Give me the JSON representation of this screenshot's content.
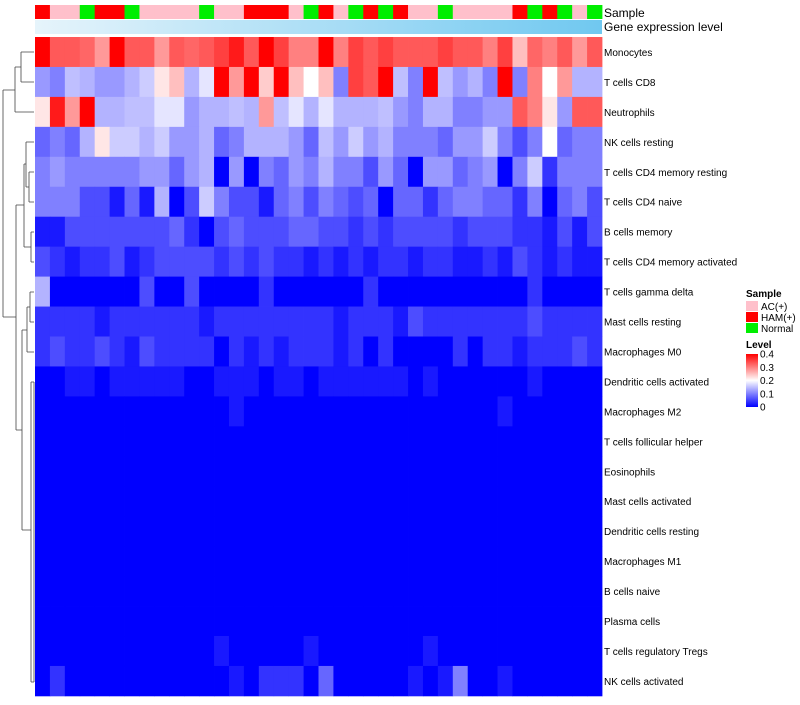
{
  "chart_data": {
    "type": "heatmap",
    "annotation_labels": [
      "Sample",
      "Gene expression level"
    ],
    "rows": [
      "Monocytes",
      "T cells CD8",
      "Neutrophils",
      "NK cells resting",
      "T cells CD4 memory resting",
      "T cells CD4 naive",
      "B cells memory",
      "T cells CD4 memory activated",
      "T cells gamma delta",
      "Mast cells resting",
      "Macrophages M0",
      "Dendritic cells activated",
      "Macrophages M2",
      "T cells follicular helper",
      "Eosinophils",
      "Mast cells activated",
      "Dendritic cells resting",
      "Macrophages M1",
      "B cells naive",
      "Plasma cells",
      "T cells regulatory  Tregs",
      "NK cells activated"
    ],
    "samples": [
      "HAM(+)",
      "AC(+)",
      "AC(+)",
      "Normal",
      "HAM(+)",
      "HAM(+)",
      "Normal",
      "AC(+)",
      "AC(+)",
      "AC(+)",
      "AC(+)",
      "Normal",
      "AC(+)",
      "AC(+)",
      "HAM(+)",
      "HAM(+)",
      "HAM(+)",
      "AC(+)",
      "Normal",
      "HAM(+)",
      "AC(+)",
      "Normal",
      "HAM(+)",
      "Normal",
      "HAM(+)",
      "AC(+)",
      "AC(+)",
      "Normal",
      "AC(+)",
      "AC(+)",
      "AC(+)",
      "AC(+)",
      "HAM(+)",
      "Normal",
      "HAM(+)",
      "Normal",
      "AC(+)",
      "Normal"
    ],
    "values": [
      [
        0.4,
        0.33,
        0.33,
        0.32,
        0.28,
        0.4,
        0.33,
        0.33,
        0.28,
        0.33,
        0.32,
        0.33,
        0.35,
        0.38,
        0.33,
        0.4,
        0.35,
        0.3,
        0.3,
        0.4,
        0.3,
        0.35,
        0.33,
        0.35,
        0.33,
        0.33,
        0.33,
        0.35,
        0.33,
        0.33,
        0.3,
        0.35,
        0.25,
        0.32,
        0.3,
        0.33,
        0.28,
        0.33
      ],
      [
        0.12,
        0.1,
        0.15,
        0.14,
        0.12,
        0.12,
        0.14,
        0.16,
        0.22,
        0.25,
        0.14,
        0.18,
        0.4,
        0.28,
        0.4,
        0.24,
        0.4,
        0.25,
        0.2,
        0.25,
        0.1,
        0.35,
        0.33,
        0.4,
        0.15,
        0.1,
        0.4,
        0.15,
        0.12,
        0.14,
        0.1,
        0.4,
        0.1,
        0.3,
        0.2,
        0.28,
        0.14,
        0.14
      ],
      [
        0.22,
        0.38,
        0.28,
        0.4,
        0.14,
        0.14,
        0.15,
        0.15,
        0.18,
        0.18,
        0.12,
        0.14,
        0.14,
        0.15,
        0.14,
        0.28,
        0.15,
        0.18,
        0.14,
        0.18,
        0.14,
        0.14,
        0.14,
        0.15,
        0.12,
        0.1,
        0.14,
        0.14,
        0.1,
        0.1,
        0.12,
        0.12,
        0.33,
        0.3,
        0.22,
        0.12,
        0.33,
        0.33
      ],
      [
        0.08,
        0.1,
        0.08,
        0.14,
        0.22,
        0.16,
        0.16,
        0.14,
        0.16,
        0.12,
        0.12,
        0.14,
        0.08,
        0.1,
        0.14,
        0.14,
        0.14,
        0.12,
        0.08,
        0.15,
        0.12,
        0.16,
        0.12,
        0.14,
        0.1,
        0.1,
        0.1,
        0.08,
        0.12,
        0.12,
        0.16,
        0.1,
        0.06,
        0.1,
        0.2,
        0.08,
        0.1,
        0.1
      ],
      [
        0.1,
        0.12,
        0.1,
        0.1,
        0.1,
        0.1,
        0.1,
        0.12,
        0.12,
        0.08,
        0.12,
        0.14,
        0.0,
        0.12,
        0.0,
        0.1,
        0.08,
        0.12,
        0.1,
        0.14,
        0.1,
        0.1,
        0.06,
        0.12,
        0.08,
        0.0,
        0.12,
        0.12,
        0.08,
        0.1,
        0.12,
        0.0,
        0.1,
        0.16,
        0.04,
        0.1,
        0.1,
        0.1
      ],
      [
        0.1,
        0.1,
        0.1,
        0.06,
        0.06,
        0.02,
        0.08,
        0.02,
        0.14,
        0.0,
        0.06,
        0.16,
        0.1,
        0.06,
        0.06,
        0.02,
        0.08,
        0.1,
        0.06,
        0.1,
        0.08,
        0.06,
        0.08,
        0.0,
        0.08,
        0.08,
        0.04,
        0.08,
        0.1,
        0.1,
        0.08,
        0.08,
        0.04,
        0.1,
        0.0,
        0.08,
        0.1,
        0.06
      ],
      [
        0.02,
        0.02,
        0.06,
        0.06,
        0.06,
        0.06,
        0.06,
        0.06,
        0.06,
        0.08,
        0.04,
        0.0,
        0.06,
        0.08,
        0.06,
        0.06,
        0.06,
        0.08,
        0.08,
        0.06,
        0.06,
        0.04,
        0.06,
        0.04,
        0.06,
        0.06,
        0.06,
        0.06,
        0.04,
        0.06,
        0.06,
        0.06,
        0.04,
        0.04,
        0.02,
        0.06,
        0.02,
        0.06
      ],
      [
        0.06,
        0.04,
        0.02,
        0.04,
        0.04,
        0.06,
        0.02,
        0.04,
        0.06,
        0.06,
        0.06,
        0.06,
        0.04,
        0.06,
        0.04,
        0.06,
        0.04,
        0.04,
        0.02,
        0.04,
        0.02,
        0.04,
        0.02,
        0.04,
        0.04,
        0.02,
        0.04,
        0.04,
        0.02,
        0.02,
        0.04,
        0.02,
        0.06,
        0.04,
        0.02,
        0.04,
        0.02,
        0.02
      ],
      [
        0.14,
        0.0,
        0.0,
        0.0,
        0.0,
        0.0,
        0.0,
        0.06,
        0.0,
        0.0,
        0.06,
        0.0,
        0.0,
        0.0,
        0.0,
        0.04,
        0.0,
        0.0,
        0.0,
        0.0,
        0.0,
        0.0,
        0.04,
        0.0,
        0.0,
        0.0,
        0.0,
        0.0,
        0.0,
        0.0,
        0.0,
        0.0,
        0.0,
        0.04,
        0.0,
        0.0,
        0.0,
        0.0
      ],
      [
        0.04,
        0.04,
        0.04,
        0.04,
        0.02,
        0.04,
        0.04,
        0.04,
        0.04,
        0.04,
        0.04,
        0.02,
        0.04,
        0.04,
        0.04,
        0.04,
        0.04,
        0.04,
        0.04,
        0.04,
        0.02,
        0.04,
        0.04,
        0.04,
        0.02,
        0.06,
        0.04,
        0.04,
        0.04,
        0.04,
        0.04,
        0.04,
        0.04,
        0.06,
        0.04,
        0.04,
        0.04,
        0.04
      ],
      [
        0.04,
        0.06,
        0.04,
        0.04,
        0.06,
        0.04,
        0.02,
        0.06,
        0.04,
        0.04,
        0.04,
        0.04,
        0.0,
        0.04,
        0.02,
        0.04,
        0.02,
        0.04,
        0.04,
        0.04,
        0.02,
        0.04,
        0.0,
        0.04,
        0.0,
        0.0,
        0.0,
        0.0,
        0.04,
        0.0,
        0.04,
        0.04,
        0.02,
        0.04,
        0.04,
        0.04,
        0.06,
        0.04
      ],
      [
        0.0,
        0.0,
        0.02,
        0.02,
        0.0,
        0.02,
        0.02,
        0.02,
        0.02,
        0.02,
        0.0,
        0.0,
        0.02,
        0.02,
        0.02,
        0.0,
        0.02,
        0.02,
        0.0,
        0.02,
        0.02,
        0.02,
        0.02,
        0.02,
        0.02,
        0.0,
        0.02,
        0.0,
        0.0,
        0.0,
        0.0,
        0.0,
        0.0,
        0.02,
        0.0,
        0.0,
        0.0,
        0.0
      ],
      [
        0.0,
        0.0,
        0.0,
        0.0,
        0.0,
        0.0,
        0.0,
        0.0,
        0.0,
        0.0,
        0.0,
        0.0,
        0.0,
        0.02,
        0.0,
        0.0,
        0.0,
        0.0,
        0.0,
        0.0,
        0.0,
        0.0,
        0.0,
        0.0,
        0.0,
        0.0,
        0.0,
        0.0,
        0.0,
        0.0,
        0.0,
        0.02,
        0.0,
        0.0,
        0.0,
        0.0,
        0.0,
        0.0
      ],
      [
        0.0,
        0.0,
        0.0,
        0.0,
        0.0,
        0.0,
        0.0,
        0.0,
        0.0,
        0.0,
        0.0,
        0.0,
        0.0,
        0.0,
        0.0,
        0.0,
        0.0,
        0.0,
        0.0,
        0.0,
        0.0,
        0.0,
        0.0,
        0.0,
        0.0,
        0.0,
        0.0,
        0.0,
        0.0,
        0.0,
        0.0,
        0.0,
        0.0,
        0.0,
        0.0,
        0.0,
        0.0,
        0.0
      ],
      [
        0.0,
        0.0,
        0.0,
        0.0,
        0.0,
        0.0,
        0.0,
        0.0,
        0.0,
        0.0,
        0.0,
        0.0,
        0.0,
        0.0,
        0.0,
        0.0,
        0.0,
        0.0,
        0.0,
        0.0,
        0.0,
        0.0,
        0.0,
        0.0,
        0.0,
        0.0,
        0.0,
        0.0,
        0.0,
        0.0,
        0.0,
        0.0,
        0.0,
        0.0,
        0.0,
        0.0,
        0.0,
        0.0
      ],
      [
        0.0,
        0.0,
        0.0,
        0.0,
        0.0,
        0.0,
        0.0,
        0.0,
        0.0,
        0.0,
        0.0,
        0.0,
        0.0,
        0.0,
        0.0,
        0.0,
        0.0,
        0.0,
        0.0,
        0.0,
        0.0,
        0.0,
        0.0,
        0.0,
        0.0,
        0.0,
        0.0,
        0.0,
        0.0,
        0.0,
        0.0,
        0.0,
        0.0,
        0.0,
        0.0,
        0.0,
        0.0,
        0.0
      ],
      [
        0.0,
        0.0,
        0.0,
        0.0,
        0.0,
        0.0,
        0.0,
        0.0,
        0.0,
        0.0,
        0.0,
        0.0,
        0.0,
        0.0,
        0.0,
        0.0,
        0.0,
        0.0,
        0.0,
        0.0,
        0.0,
        0.0,
        0.0,
        0.0,
        0.0,
        0.0,
        0.0,
        0.0,
        0.0,
        0.0,
        0.0,
        0.0,
        0.0,
        0.0,
        0.0,
        0.0,
        0.0,
        0.0
      ],
      [
        0.0,
        0.0,
        0.0,
        0.0,
        0.0,
        0.0,
        0.0,
        0.0,
        0.0,
        0.0,
        0.0,
        0.0,
        0.0,
        0.0,
        0.0,
        0.0,
        0.0,
        0.0,
        0.0,
        0.0,
        0.0,
        0.0,
        0.0,
        0.0,
        0.0,
        0.0,
        0.0,
        0.0,
        0.0,
        0.0,
        0.0,
        0.0,
        0.0,
        0.0,
        0.0,
        0.0,
        0.0,
        0.0
      ],
      [
        0.0,
        0.0,
        0.0,
        0.0,
        0.0,
        0.0,
        0.0,
        0.0,
        0.0,
        0.0,
        0.0,
        0.0,
        0.0,
        0.0,
        0.0,
        0.0,
        0.0,
        0.0,
        0.0,
        0.0,
        0.0,
        0.0,
        0.0,
        0.0,
        0.0,
        0.0,
        0.0,
        0.0,
        0.0,
        0.0,
        0.0,
        0.0,
        0.0,
        0.0,
        0.0,
        0.0,
        0.0,
        0.0
      ],
      [
        0.0,
        0.0,
        0.0,
        0.0,
        0.0,
        0.0,
        0.0,
        0.0,
        0.0,
        0.0,
        0.0,
        0.0,
        0.0,
        0.0,
        0.0,
        0.0,
        0.0,
        0.0,
        0.0,
        0.0,
        0.0,
        0.0,
        0.0,
        0.0,
        0.0,
        0.0,
        0.0,
        0.0,
        0.0,
        0.0,
        0.0,
        0.0,
        0.0,
        0.0,
        0.0,
        0.0,
        0.0,
        0.0
      ],
      [
        0.0,
        0.0,
        0.0,
        0.0,
        0.0,
        0.0,
        0.0,
        0.0,
        0.0,
        0.0,
        0.0,
        0.0,
        0.02,
        0.0,
        0.0,
        0.0,
        0.0,
        0.0,
        0.02,
        0.0,
        0.0,
        0.0,
        0.0,
        0.0,
        0.0,
        0.0,
        0.02,
        0.0,
        0.0,
        0.0,
        0.0,
        0.0,
        0.0,
        0.0,
        0.0,
        0.0,
        0.0,
        0.0
      ],
      [
        0.0,
        0.04,
        0.0,
        0.0,
        0.0,
        0.0,
        0.0,
        0.0,
        0.0,
        0.0,
        0.0,
        0.0,
        0.0,
        0.02,
        0.0,
        0.04,
        0.04,
        0.04,
        0.0,
        0.08,
        0.0,
        0.0,
        0.0,
        0.0,
        0.0,
        0.02,
        0.0,
        0.02,
        0.1,
        0.0,
        0.0,
        0.02,
        0.0,
        0.0,
        0.0,
        0.0,
        0.0,
        0.0
      ]
    ],
    "color_scale": {
      "min": 0,
      "max": 0.4,
      "stops": [
        [
          0,
          "#0000ff"
        ],
        [
          0.2,
          "#ffffff"
        ],
        [
          0.4,
          "#ff0000"
        ]
      ]
    },
    "expression_bar_color": "#70c8f0",
    "legend": {
      "sample": {
        "title": "Sample",
        "entries": [
          {
            "label": "AC(+)",
            "color": "#ffc0cb"
          },
          {
            "label": "HAM(+)",
            "color": "#ff0000"
          },
          {
            "label": "Normal",
            "color": "#00ee00"
          }
        ]
      },
      "level": {
        "title": "Level",
        "ticks": [
          "0.4",
          "0.3",
          "0.2",
          "0.1",
          "0"
        ]
      }
    }
  }
}
